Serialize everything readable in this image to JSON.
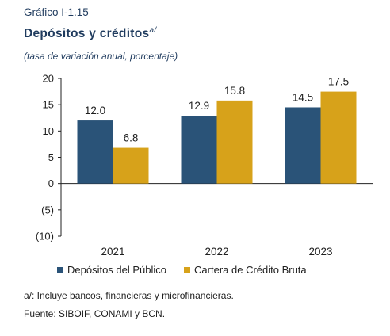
{
  "figure_label": "Gráfico I-1.15",
  "title": "Depósitos y créditos",
  "title_superscript": "a/",
  "subtitle": "(tasa de variación anual, porcentaje)",
  "chart_data": {
    "type": "bar",
    "categories": [
      "2021",
      "2022",
      "2023"
    ],
    "series": [
      {
        "name": "Depósitos del Público",
        "values": [
          12.0,
          12.9,
          14.5
        ],
        "labels": [
          "12.0",
          "12.9",
          "14.5"
        ],
        "color": "#2a5378"
      },
      {
        "name": "Cartera de Crédito Bruta",
        "values": [
          6.8,
          15.8,
          17.5
        ],
        "labels": [
          "6.8",
          "15.8",
          "17.5"
        ],
        "color": "#d7a21a"
      }
    ],
    "ylim": [
      -10,
      20
    ],
    "yticks": [
      20,
      15,
      10,
      5,
      0,
      -5,
      -10
    ],
    "ytick_labels": [
      "20",
      "15",
      "10",
      "5",
      "0",
      "(5)",
      "(10)"
    ],
    "grid": false,
    "legend_position": "bottom"
  },
  "footnotes": [
    "a/: Incluye bancos, financieras y microfinancieras.",
    "Fuente: SIBOIF, CONAMI y BCN."
  ]
}
